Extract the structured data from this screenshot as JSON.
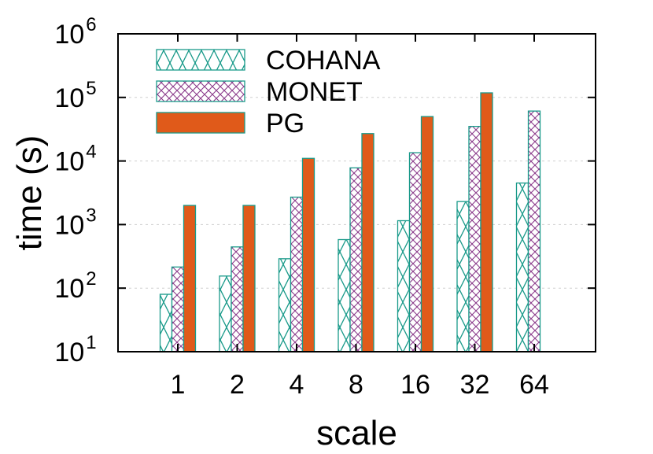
{
  "chart_data": {
    "type": "bar",
    "title": "",
    "xlabel": "scale",
    "ylabel": "time (s)",
    "yscale": "log",
    "ylim": [
      10,
      1000000
    ],
    "grid": "horizontal",
    "legend_position": "top-left",
    "categories": [
      "1",
      "2",
      "4",
      "8",
      "16",
      "32",
      "64"
    ],
    "series": [
      {
        "name": "COHANA",
        "values": [
          80,
          155,
          290,
          580,
          1150,
          2300,
          4500
        ],
        "pattern": "cross-hatch",
        "color": "#1a9a8a"
      },
      {
        "name": "MONET",
        "values": [
          215,
          445,
          2700,
          7800,
          13500,
          35000,
          61000
        ],
        "pattern": "diamond-hatch",
        "color": "#8a3a8a"
      },
      {
        "name": "PG",
        "values": [
          2000,
          2000,
          11000,
          27000,
          50000,
          118000,
          null
        ],
        "pattern": "solid",
        "color": "#e05a1a"
      }
    ]
  }
}
